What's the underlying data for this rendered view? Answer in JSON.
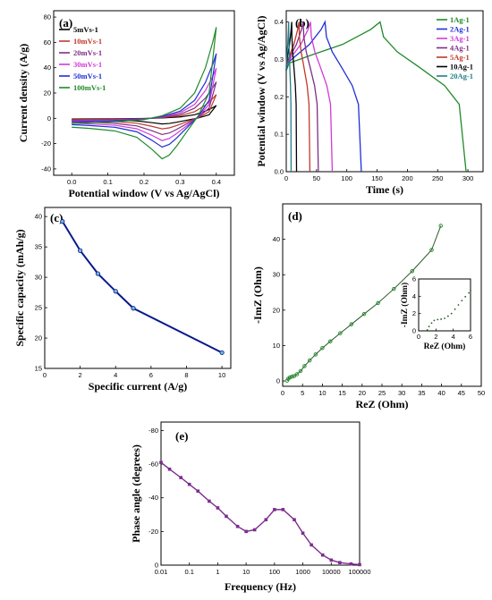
{
  "chart_data": [
    {
      "id": "a",
      "type": "line",
      "panel_label": "(a)",
      "xlabel": "Potential window (V vs Ag/AgCl)",
      "ylabel": "Current density (A/g)",
      "xlim": [
        -0.05,
        0.45
      ],
      "ylim": [
        -45,
        85
      ],
      "xticks": [
        "0.0",
        "0.1",
        "0.2",
        "0.3",
        "0.4"
      ],
      "xtick_values": [
        0,
        0.1,
        0.2,
        0.3,
        0.4
      ],
      "yticks": [
        "-40",
        "-20",
        "0",
        "20",
        "40",
        "60",
        "80"
      ],
      "ytick_values": [
        -40,
        -20,
        0,
        20,
        40,
        60,
        80
      ],
      "legend_position": "top-left",
      "series": [
        {
          "name": "5mVs-1",
          "scale": 0.14,
          "color": "#000000"
        },
        {
          "name": "10mVs-1",
          "scale": 0.26,
          "color": "#c0392b"
        },
        {
          "name": "20mVs-1",
          "scale": 0.4,
          "color": "#7d2e86"
        },
        {
          "name": "30mVs-1",
          "scale": 0.55,
          "color": "#d13ad6"
        },
        {
          "name": "50mVs-1",
          "scale": 0.71,
          "color": "#1f2fd6"
        },
        {
          "name": "100mVs-1",
          "scale": 1.0,
          "color": "#1f8a2a"
        }
      ],
      "shape_anodic": {
        "x": [
          0.0,
          0.1,
          0.2,
          0.25,
          0.3,
          0.34,
          0.37,
          0.39,
          0.4
        ],
        "y": [
          -4,
          -3,
          -1,
          2,
          8,
          20,
          40,
          60,
          72
        ]
      },
      "shape_cathodic": {
        "x": [
          0.4,
          0.38,
          0.35,
          0.32,
          0.29,
          0.27,
          0.25,
          0.22,
          0.18,
          0.12,
          0.05,
          0.0
        ],
        "y": [
          72,
          20,
          2,
          -10,
          -22,
          -29,
          -32,
          -24,
          -15,
          -10,
          -8,
          -7
        ]
      }
    },
    {
      "id": "b",
      "type": "line",
      "panel_label": "(b)",
      "xlabel": "Time (s)",
      "ylabel": "Potential window (V vs Ag/AgCl)",
      "xlim": [
        0,
        325
      ],
      "ylim": [
        0,
        0.43
      ],
      "xticks": [
        "0",
        "50",
        "100",
        "150",
        "200",
        "250",
        "300"
      ],
      "xtick_values": [
        0,
        50,
        100,
        150,
        200,
        250,
        300
      ],
      "yticks": [
        "0.0",
        "0.1",
        "0.2",
        "0.3",
        "0.4"
      ],
      "ytick_values": [
        0,
        0.1,
        0.2,
        0.3,
        0.4
      ],
      "legend_position": "top-right",
      "series": [
        {
          "name": "1Ag-1",
          "color": "#1f8a2a",
          "charge_end": 155,
          "discharge_end": 297
        },
        {
          "name": "2Ag-1",
          "color": "#1f2fd6",
          "charge_end": 64,
          "discharge_end": 124
        },
        {
          "name": "3Ag-1",
          "color": "#d13ad6",
          "charge_end": 40,
          "discharge_end": 76
        },
        {
          "name": "4Ag-1",
          "color": "#7d2e86",
          "charge_end": 28,
          "discharge_end": 53
        },
        {
          "name": "5Ag-1",
          "color": "#c0392b",
          "charge_end": 21,
          "discharge_end": 39
        },
        {
          "name": "10Ag-1",
          "color": "#000000",
          "charge_end": 9,
          "discharge_end": 17
        },
        {
          "name": "20Ag-1",
          "color": "#1f7f8a",
          "charge_end": 4,
          "discharge_end": 8
        }
      ],
      "v_max": 0.4
    },
    {
      "id": "c",
      "type": "line",
      "panel_label": "(c)",
      "xlabel": "Specific current (A/g)",
      "ylabel": "Specific capacity (mAh/g)",
      "xlim": [
        0,
        10.5
      ],
      "ylim": [
        15,
        41.5
      ],
      "xticks": [
        "0",
        "2",
        "4",
        "6",
        "8",
        "10"
      ],
      "xtick_values": [
        0,
        2,
        4,
        6,
        8,
        10
      ],
      "yticks": [
        "15",
        "20",
        "25",
        "30",
        "35",
        "40"
      ],
      "ytick_values": [
        15,
        20,
        25,
        30,
        35,
        40
      ],
      "series": [
        {
          "name": "",
          "color": "#0a1a8c",
          "x": [
            1,
            2,
            3,
            4,
            5,
            10
          ],
          "y": [
            39.2,
            34.4,
            30.6,
            27.7,
            24.9,
            17.6
          ]
        }
      ]
    },
    {
      "id": "d",
      "type": "scatter",
      "panel_label": "(d)",
      "xlabel": "ReZ (Ohm)",
      "ylabel": "-ImZ (Ohm)",
      "xlim": [
        0,
        50
      ],
      "ylim": [
        -1.5,
        50
      ],
      "xticks": [
        "0",
        "5",
        "10",
        "15",
        "20",
        "25",
        "30",
        "35",
        "40",
        "45",
        "50"
      ],
      "xtick_values": [
        0,
        5,
        10,
        15,
        20,
        25,
        30,
        35,
        40,
        45,
        50
      ],
      "yticks": [
        "0",
        "10",
        "20",
        "30",
        "40"
      ],
      "ytick_values": [
        0,
        10,
        20,
        30,
        40
      ],
      "series": [
        {
          "name": "",
          "color": "#1f8a2a",
          "x": [
            1.1,
            1.4,
            1.8,
            2.3,
            2.9,
            3.6,
            4.5,
            5.5,
            6.8,
            8.3,
            10.0,
            12.0,
            14.5,
            17.3,
            20.5,
            24.0,
            28.0,
            32.6,
            37.5,
            39.8
          ],
          "y": [
            0.1,
            0.6,
            1.0,
            1.2,
            1.4,
            1.9,
            2.8,
            4.2,
            5.8,
            7.5,
            9.3,
            11.2,
            13.5,
            16.0,
            18.9,
            22.0,
            26.0,
            31.0,
            37.0,
            43.8
          ]
        }
      ],
      "inset": {
        "xlabel": "ReZ (Ohm)",
        "ylabel": "-ImZ (Ohm)",
        "xlim": [
          0,
          6
        ],
        "ylim": [
          0,
          6
        ],
        "xticks": [
          "0",
          "2",
          "4",
          "6"
        ],
        "xtick_values": [
          0,
          2,
          4,
          6
        ],
        "yticks": [
          "0",
          "2",
          "4",
          "6"
        ],
        "ytick_values": [
          0,
          2,
          4,
          6
        ],
        "x": [
          1.0,
          1.2,
          1.5,
          1.8,
          2.2,
          2.6,
          3.0,
          3.4,
          3.8,
          4.2,
          4.6,
          5.0,
          5.4,
          5.8,
          6.0
        ],
        "y": [
          0.1,
          0.5,
          0.9,
          1.2,
          1.3,
          1.35,
          1.45,
          1.7,
          2.0,
          2.5,
          3.0,
          3.5,
          3.95,
          4.4,
          4.7
        ]
      }
    },
    {
      "id": "e",
      "type": "line",
      "panel_label": "(e)",
      "xlabel": "Frequency (Hz)",
      "ylabel": "Phase angle (degrees)",
      "x_scale": "log",
      "xlim": [
        0.01,
        100000
      ],
      "ylim": [
        0,
        -85
      ],
      "xticks": [
        "0.01",
        "0.1",
        "1",
        "10",
        "100",
        "1000",
        "10000",
        "100000"
      ],
      "xtick_values": [
        0.01,
        0.1,
        1,
        10,
        100,
        1000,
        10000,
        100000
      ],
      "yticks": [
        "0",
        "-20",
        "-40",
        "-60",
        "-80"
      ],
      "ytick_values": [
        0,
        -20,
        -40,
        -60,
        -80
      ],
      "series": [
        {
          "name": "",
          "color": "#7b2d8e",
          "x": [
            0.01,
            0.02,
            0.05,
            0.1,
            0.2,
            0.5,
            1,
            2,
            5,
            10,
            20,
            50,
            100,
            200,
            500,
            1000,
            2000,
            5000,
            10000,
            20000,
            50000,
            100000
          ],
          "y": [
            -61,
            -57,
            -52,
            -48,
            -44,
            -38,
            -34,
            -29,
            -23,
            -20,
            -21,
            -27,
            -33,
            -33,
            -27,
            -19,
            -12,
            -6,
            -3,
            -1.5,
            -0.7,
            -0.3
          ]
        }
      ]
    }
  ]
}
